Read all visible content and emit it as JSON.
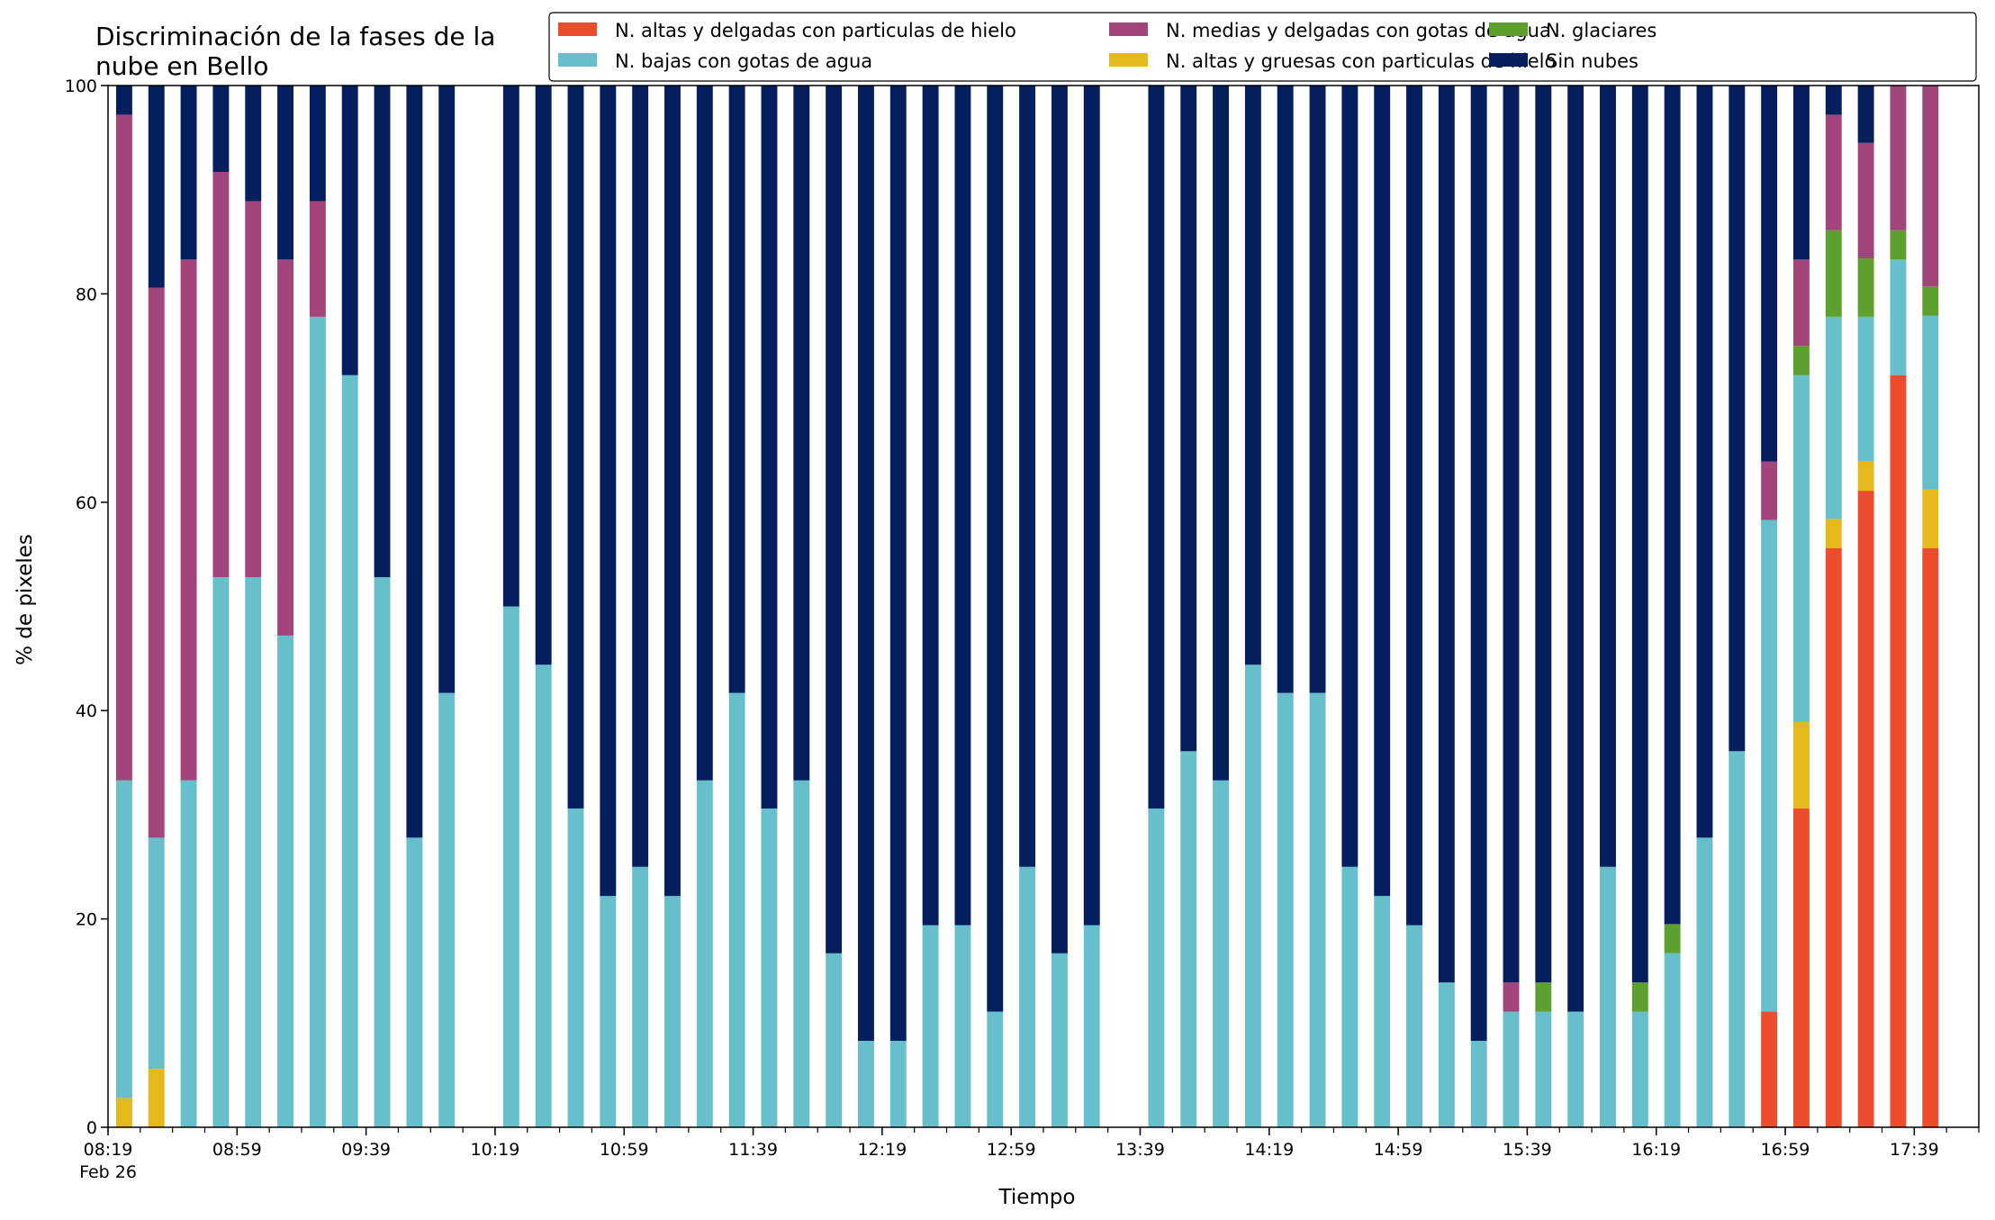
{
  "chart_data": {
    "type": "bar",
    "stacked": true,
    "title_lines": [
      "Discriminación de la fases de la",
      "nube en Bello"
    ],
    "xlabel": "Tiempo",
    "ylabel": "% de pixeles",
    "ylim": [
      0,
      100
    ],
    "y_ticks": [
      "0",
      "20",
      "40",
      "60",
      "80",
      "100"
    ],
    "x_range": [
      "08:19",
      "17:59"
    ],
    "x_tick_labels": [
      "08:19",
      "08:59",
      "09:39",
      "10:19",
      "10:59",
      "11:39",
      "12:19",
      "12:59",
      "13:39",
      "14:19",
      "14:59",
      "15:39",
      "16:19",
      "16:59",
      "17:39"
    ],
    "x_date_label": "Feb 26",
    "x_interval_minutes": 10,
    "bar_width_minutes": 5,
    "grid": false,
    "legend_position": "top-right",
    "legend_columns": 3,
    "series": [
      {
        "name": "N. altas y delgadas con particulas de hielo",
        "color": "#ee4d2d"
      },
      {
        "name": "N. altas y gruesas con particulas de hielo",
        "color": "#e5b81c"
      },
      {
        "name": "N. bajas con gotas de agua",
        "color": "#66bfca"
      },
      {
        "name": "N. glaciares",
        "color": "#5ea02f"
      },
      {
        "name": "N. medias y delgadas con gotas de agua",
        "color": "#a2457a"
      },
      {
        "name": "Sin nubes",
        "color": "#041e5e"
      }
    ],
    "legend_order": [
      0,
      2,
      4,
      1,
      3,
      5
    ],
    "bars": [
      {
        "time": "08:24",
        "values": [
          0,
          2.8,
          30.5,
          0,
          63.9,
          2.8
        ]
      },
      {
        "time": "08:34",
        "values": [
          0,
          5.6,
          22.2,
          0,
          52.8,
          19.4
        ]
      },
      {
        "time": "08:44",
        "values": [
          0,
          0,
          33.3,
          0,
          50,
          16.7
        ]
      },
      {
        "time": "08:54",
        "values": [
          0,
          0,
          52.8,
          0,
          38.9,
          8.3
        ]
      },
      {
        "time": "09:04",
        "values": [
          0,
          0,
          52.8,
          0,
          36.1,
          11.1
        ]
      },
      {
        "time": "09:14",
        "values": [
          0,
          0,
          47.2,
          0,
          36.1,
          16.7
        ]
      },
      {
        "time": "09:24",
        "values": [
          0,
          0,
          77.8,
          0,
          11.1,
          11.1
        ]
      },
      {
        "time": "09:34",
        "values": [
          0,
          0,
          72.2,
          0,
          0,
          27.8
        ]
      },
      {
        "time": "09:44",
        "values": [
          0,
          0,
          52.8,
          0,
          0,
          47.2
        ]
      },
      {
        "time": "09:54",
        "values": [
          0,
          0,
          27.8,
          0,
          0,
          72.2
        ]
      },
      {
        "time": "10:04",
        "values": [
          0,
          0,
          41.7,
          0,
          0,
          58.3
        ]
      },
      {
        "time": "10:24",
        "values": [
          0,
          0,
          50,
          0,
          0,
          50
        ]
      },
      {
        "time": "10:34",
        "values": [
          0,
          0,
          44.4,
          0,
          0,
          55.6
        ]
      },
      {
        "time": "10:44",
        "values": [
          0,
          0,
          30.6,
          0,
          0,
          69.4
        ]
      },
      {
        "time": "10:54",
        "values": [
          0,
          0,
          22.2,
          0,
          0,
          77.8
        ]
      },
      {
        "time": "11:04",
        "values": [
          0,
          0,
          25,
          0,
          0,
          75
        ]
      },
      {
        "time": "11:14",
        "values": [
          0,
          0,
          22.2,
          0,
          0,
          77.8
        ]
      },
      {
        "time": "11:24",
        "values": [
          0,
          0,
          33.3,
          0,
          0,
          66.7
        ]
      },
      {
        "time": "11:34",
        "values": [
          0,
          0,
          41.7,
          0,
          0,
          58.3
        ]
      },
      {
        "time": "11:44",
        "values": [
          0,
          0,
          30.6,
          0,
          0,
          69.4
        ]
      },
      {
        "time": "11:54",
        "values": [
          0,
          0,
          33.3,
          0,
          0,
          66.7
        ]
      },
      {
        "time": "12:04",
        "values": [
          0,
          0,
          16.7,
          0,
          0,
          83.3
        ]
      },
      {
        "time": "12:14",
        "values": [
          0,
          0,
          8.3,
          0,
          0,
          91.7
        ]
      },
      {
        "time": "12:24",
        "values": [
          0,
          0,
          8.3,
          0,
          0,
          91.7
        ]
      },
      {
        "time": "12:34",
        "values": [
          0,
          0,
          19.4,
          0,
          0,
          80.6
        ]
      },
      {
        "time": "12:44",
        "values": [
          0,
          0,
          19.4,
          0,
          0,
          80.6
        ]
      },
      {
        "time": "12:54",
        "values": [
          0,
          0,
          11.1,
          0,
          0,
          88.9
        ]
      },
      {
        "time": "13:04",
        "values": [
          0,
          0,
          25,
          0,
          0,
          75
        ]
      },
      {
        "time": "13:14",
        "values": [
          0,
          0,
          16.7,
          0,
          0,
          83.3
        ]
      },
      {
        "time": "13:24",
        "values": [
          0,
          0,
          19.4,
          0,
          0,
          80.6
        ]
      },
      {
        "time": "13:44",
        "values": [
          0,
          0,
          30.6,
          0,
          0,
          69.4
        ]
      },
      {
        "time": "13:54",
        "values": [
          0,
          0,
          36.1,
          0,
          0,
          63.9
        ]
      },
      {
        "time": "14:04",
        "values": [
          0,
          0,
          33.3,
          0,
          0,
          66.7
        ]
      },
      {
        "time": "14:14",
        "values": [
          0,
          0,
          44.4,
          0,
          0,
          55.6
        ]
      },
      {
        "time": "14:24",
        "values": [
          0,
          0,
          41.7,
          0,
          0,
          58.3
        ]
      },
      {
        "time": "14:34",
        "values": [
          0,
          0,
          41.7,
          0,
          0,
          58.3
        ]
      },
      {
        "time": "14:44",
        "values": [
          0,
          0,
          25,
          0,
          0,
          75
        ]
      },
      {
        "time": "14:54",
        "values": [
          0,
          0,
          22.2,
          0,
          0,
          77.8
        ]
      },
      {
        "time": "15:04",
        "values": [
          0,
          0,
          19.4,
          0,
          0,
          80.6
        ]
      },
      {
        "time": "15:14",
        "values": [
          0,
          0,
          13.9,
          0,
          0,
          86.1
        ]
      },
      {
        "time": "15:24",
        "values": [
          0,
          0,
          8.3,
          0,
          0,
          91.7
        ]
      },
      {
        "time": "15:34",
        "values": [
          0,
          0,
          11.1,
          0,
          2.8,
          86.1
        ]
      },
      {
        "time": "15:44",
        "values": [
          0,
          0,
          11.1,
          2.8,
          0,
          86.1
        ]
      },
      {
        "time": "15:54",
        "values": [
          0,
          0,
          11.1,
          0,
          0,
          88.9
        ]
      },
      {
        "time": "16:04",
        "values": [
          0,
          0,
          25,
          0,
          0,
          75
        ]
      },
      {
        "time": "16:14",
        "values": [
          0,
          0,
          11.1,
          2.8,
          0,
          86.1
        ]
      },
      {
        "time": "16:24",
        "values": [
          0,
          0,
          16.7,
          2.8,
          0,
          80.5
        ]
      },
      {
        "time": "16:34",
        "values": [
          0,
          0,
          27.8,
          0,
          0,
          72.2
        ]
      },
      {
        "time": "16:44",
        "values": [
          0,
          0,
          36.1,
          0,
          0,
          63.9
        ]
      },
      {
        "time": "16:54",
        "values": [
          11.1,
          0,
          47.2,
          0,
          5.6,
          36.1
        ]
      },
      {
        "time": "17:04",
        "values": [
          30.6,
          8.3,
          33.3,
          2.8,
          8.3,
          16.7
        ]
      },
      {
        "time": "17:14",
        "values": [
          55.6,
          2.8,
          19.4,
          8.3,
          11.1,
          2.8
        ]
      },
      {
        "time": "17:24",
        "values": [
          61.1,
          2.8,
          13.9,
          5.6,
          11.1,
          5.5
        ]
      },
      {
        "time": "17:34",
        "values": [
          72.2,
          0,
          11.1,
          2.8,
          13.9,
          0
        ]
      },
      {
        "time": "17:44",
        "values": [
          55.6,
          5.6,
          16.7,
          2.8,
          19.3,
          0
        ]
      }
    ]
  }
}
